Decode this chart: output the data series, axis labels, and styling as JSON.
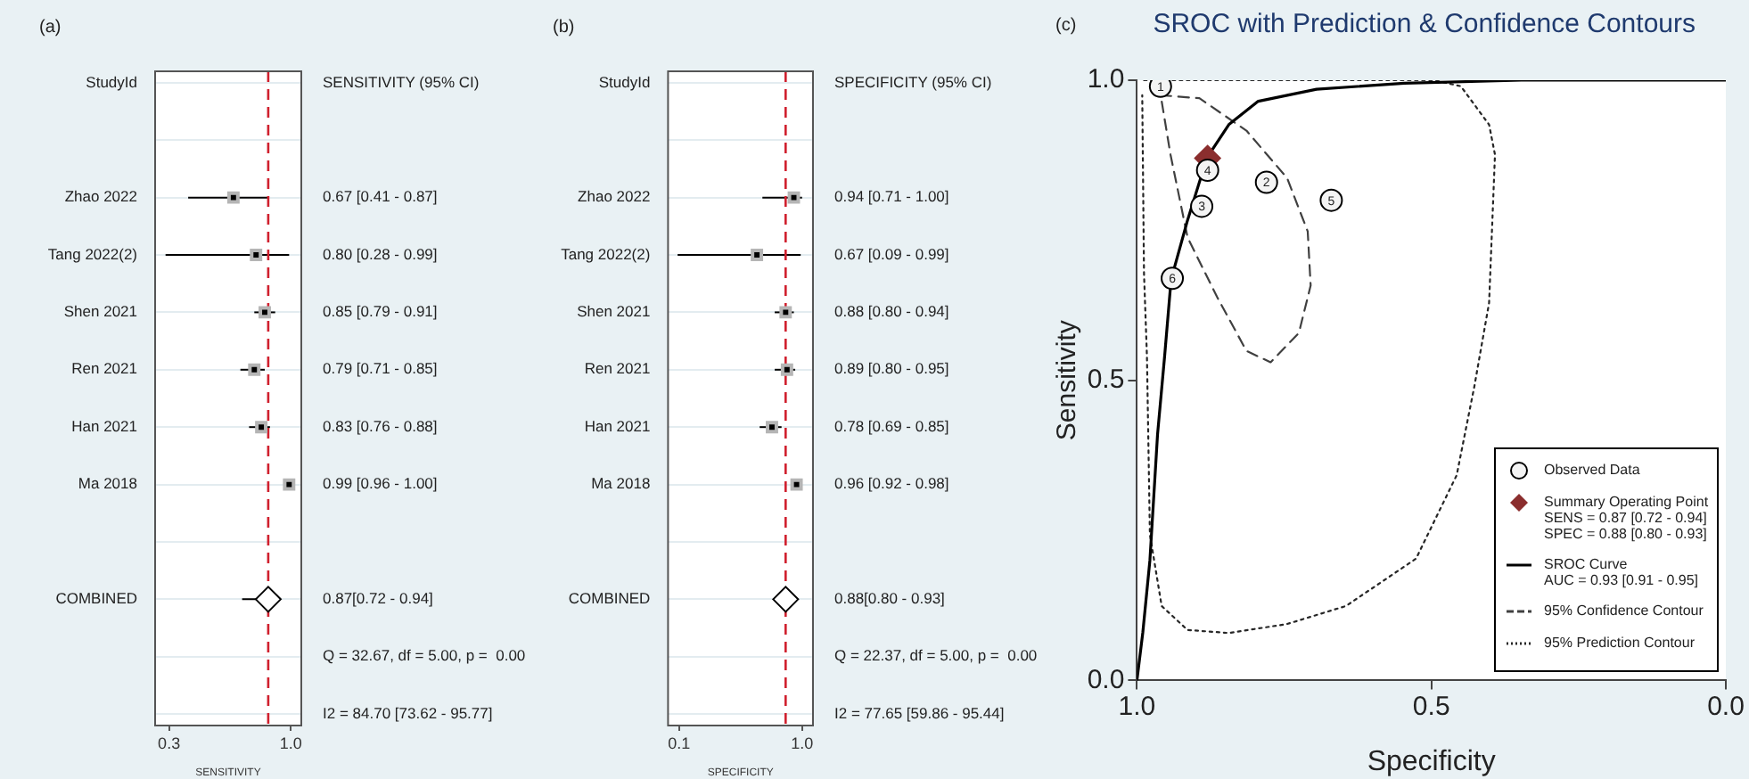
{
  "chart_data": [
    {
      "type": "scatter",
      "orientation": "horizontal",
      "xlabel": "SENSITIVITY",
      "grid": "y",
      "categories": [
        null,
        null,
        "Zhao 2022",
        "Tang 2022(2)",
        "Shen 2021",
        "Ren 2021",
        "Han 2021",
        "Ma 2018",
        null,
        "COMBINED",
        null,
        null
      ],
      "xlim": [
        0.22,
        1.06
      ],
      "xticks": [
        {
          "value": 0.3,
          "label": "0.3"
        },
        {
          "value": 1,
          "label": "1.0"
        }
      ],
      "series": [
        {
          "color": "#000000",
          "marker": "square",
          "values": [
            null,
            null,
            0.67,
            0.8,
            0.85,
            0.79,
            0.83,
            0.99,
            null,
            null,
            null,
            null
          ],
          "errors": [
            null,
            null,
            [
              0.41,
              0.87
            ],
            [
              0.28,
              0.99
            ],
            [
              0.79,
              0.91
            ],
            [
              0.71,
              0.85
            ],
            [
              0.76,
              0.88
            ],
            [
              0.96,
              1.0
            ],
            null,
            null,
            null,
            null
          ],
          "value_labels": [
            null,
            null,
            "0.67 [0.41 - 0.87]",
            "0.80 [0.28 - 0.99]",
            "0.85 [0.79 - 0.91]",
            "0.79 [0.71 - 0.85]",
            "0.83 [0.76 - 0.88]",
            "0.99 [0.96 - 1.00]",
            null,
            null,
            null,
            null
          ]
        },
        {
          "color": "#000000",
          "marker": "diamond",
          "values": [
            null,
            null,
            null,
            null,
            null,
            null,
            null,
            null,
            null,
            0.87,
            null,
            null
          ],
          "errors": [
            null,
            null,
            null,
            null,
            null,
            null,
            null,
            null,
            null,
            [
              0.72,
              0.94
            ],
            null,
            null
          ],
          "value_labels": [
            null,
            null,
            null,
            null,
            null,
            null,
            null,
            null,
            null,
            "0.87[0.72 - 0.94]",
            null,
            null
          ]
        }
      ],
      "ref_lines": [
        {
          "axis": "x",
          "value": 0.87,
          "color": "#d0202e",
          "line_style": "dashed"
        }
      ],
      "annotations": [
        "(a)",
        "StudyId",
        "SENSITIVITY (95% CI)",
        "Q = 32.67, df = 5.00, p =  0.00",
        "I2 = 84.70 [73.62 - 95.77]"
      ]
    },
    {
      "type": "scatter",
      "orientation": "horizontal",
      "xlabel": "SPECIFICITY",
      "grid": "y",
      "categories": [
        null,
        null,
        "Zhao 2022",
        "Tang 2022(2)",
        "Shen 2021",
        "Ren 2021",
        "Han 2021",
        "Ma 2018",
        null,
        "COMBINED",
        null,
        null
      ],
      "xlim": [
        0.02,
        1.08
      ],
      "xticks": [
        {
          "value": 0.1,
          "label": "0.1"
        },
        {
          "value": 1,
          "label": "1.0"
        }
      ],
      "series": [
        {
          "color": "#000000",
          "marker": "square",
          "values": [
            null,
            null,
            0.94,
            0.67,
            0.88,
            0.89,
            0.78,
            0.96,
            null,
            null,
            null,
            null
          ],
          "errors": [
            null,
            null,
            [
              0.71,
              1.0
            ],
            [
              0.09,
              0.99
            ],
            [
              0.8,
              0.94
            ],
            [
              0.8,
              0.95
            ],
            [
              0.69,
              0.85
            ],
            [
              0.92,
              0.98
            ],
            null,
            null,
            null,
            null
          ],
          "value_labels": [
            null,
            null,
            "0.94 [0.71 - 1.00]",
            "0.67 [0.09 - 0.99]",
            "0.88 [0.80 - 0.94]",
            "0.89 [0.80 - 0.95]",
            "0.78 [0.69 - 0.85]",
            "0.96 [0.92 - 0.98]",
            null,
            null,
            null,
            null
          ]
        },
        {
          "color": "#000000",
          "marker": "diamond",
          "values": [
            null,
            null,
            null,
            null,
            null,
            null,
            null,
            null,
            null,
            0.88,
            null,
            null
          ],
          "errors": [
            null,
            null,
            null,
            null,
            null,
            null,
            null,
            null,
            null,
            [
              0.8,
              0.93
            ],
            null,
            null
          ],
          "value_labels": [
            null,
            null,
            null,
            null,
            null,
            null,
            null,
            null,
            null,
            "0.88[0.80 - 0.93]",
            null,
            null
          ]
        }
      ],
      "ref_lines": [
        {
          "axis": "x",
          "value": 0.88,
          "color": "#d0202e",
          "line_style": "dashed"
        }
      ],
      "annotations": [
        "(b)",
        "StudyId",
        "SPECIFICITY (95% CI)",
        "Q = 22.37, df = 5.00, p =  0.00",
        "I2 = 77.65 [59.86 - 95.44]"
      ]
    },
    {
      "type": "scatter",
      "title": "SROC with Prediction & Confidence Contours",
      "xlabel": "Specificity",
      "ylabel": "Sensitivity",
      "legend": "bottom right",
      "xlim": [
        1,
        0
      ],
      "ylim": [
        0,
        1
      ],
      "xticks": [
        {
          "value": 1,
          "label": "1.0"
        },
        {
          "value": 0.5,
          "label": "0.5"
        },
        {
          "value": 0,
          "label": "0.0"
        }
      ],
      "yticks": [
        {
          "value": 0,
          "label": "0.0"
        },
        {
          "value": 0.5,
          "label": "0.5"
        },
        {
          "value": 1,
          "label": "1.0"
        }
      ],
      "series": [
        {
          "name": "Observed Data",
          "color": "#000000",
          "marker": "circle",
          "x": [
            0.96,
            0.78,
            0.89,
            0.88,
            0.67,
            0.94
          ],
          "values": [
            0.99,
            0.83,
            0.79,
            0.85,
            0.8,
            0.67
          ]
        },
        {
          "name": "Summary Operating Point",
          "color": "#8b2e2e",
          "marker": "diamond",
          "x": [
            0.88
          ],
          "values": [
            0.87
          ]
        },
        {
          "name": "SROC Curve",
          "type": "line",
          "color": "#000000",
          "line_style": "solid",
          "marker": "none",
          "x": [
            1,
            0.99,
            0.978,
            0.965,
            0.953,
            0.942,
            0.914,
            0.881,
            0.844,
            0.794,
            0.695,
            0.546,
            0.347,
            0
          ],
          "values": [
            0,
            0.08,
            0.2,
            0.41,
            0.54,
            0.668,
            0.767,
            0.871,
            0.926,
            0.965,
            0.985,
            0.995,
            1.0,
            1.0
          ]
        },
        {
          "name": "95% Confidence Contour",
          "type": "line",
          "color": "#404040",
          "line_style": "dashed",
          "marker": "none",
          "x": [
            0.96,
            0.894,
            0.814,
            0.745,
            0.71,
            0.705,
            0.725,
            0.773,
            0.814,
            0.864,
            0.914,
            0.943,
            0.958
          ],
          "values": [
            0.975,
            0.97,
            0.916,
            0.837,
            0.748,
            0.658,
            0.579,
            0.53,
            0.549,
            0.639,
            0.738,
            0.876,
            0.965
          ]
        },
        {
          "name": "95% Prediction Contour",
          "type": "line",
          "color": "#262626",
          "line_style": "dotted",
          "marker": "none",
          "x": [
            0.988,
            0.496,
            0.45,
            0.402,
            0.392,
            0.402,
            0.427,
            0.457,
            0.526,
            0.645,
            0.745,
            0.844,
            0.914,
            0.958,
            0.978,
            0.983,
            0.988,
            0.991
          ],
          "values": [
            1.0,
            1.0,
            0.99,
            0.926,
            0.876,
            0.629,
            0.49,
            0.342,
            0.203,
            0.124,
            0.094,
            0.079,
            0.084,
            0.124,
            0.243,
            0.54,
            0.678,
            0.975
          ]
        }
      ],
      "annotations": [
        "(c)",
        "SENS = 0.87 [0.72 - 0.94]",
        "SPEC = 0.88 [0.80 - 0.93]",
        "AUC = 0.93 [0.91 - 0.95]",
        {
          "text": "1",
          "x": 0.96,
          "y": 0.99
        },
        {
          "text": "2",
          "x": 0.78,
          "y": 0.83
        },
        {
          "text": "3",
          "x": 0.89,
          "y": 0.79
        },
        {
          "text": "4",
          "x": 0.88,
          "y": 0.85
        },
        {
          "text": "5",
          "x": 0.67,
          "y": 0.8
        },
        {
          "text": "6",
          "x": 0.94,
          "y": 0.67
        }
      ]
    }
  ]
}
